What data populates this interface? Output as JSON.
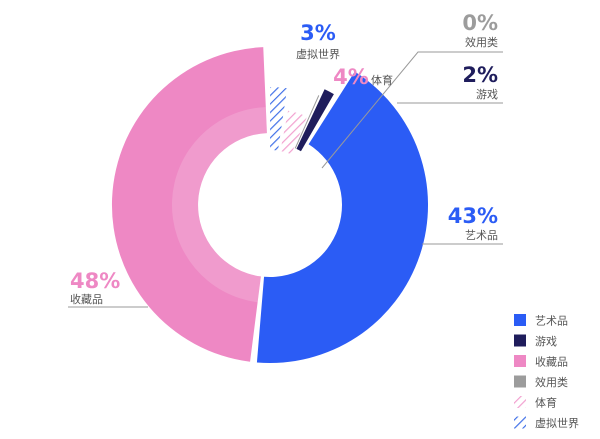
{
  "chart_data": {
    "type": "pie",
    "style": "donut",
    "categories": [
      "艺术品",
      "游戏",
      "收藏品",
      "效用类",
      "体育",
      "虚拟世界"
    ],
    "values": [
      43,
      2,
      48,
      0,
      4,
      3
    ],
    "value_labels": [
      "43%",
      "2%",
      "48%",
      "0%",
      "4%",
      "3%"
    ],
    "legend_position": "bottom-right"
  },
  "colors": {
    "art": "#2b5cf5",
    "games": "#1f1d5c",
    "collectibles": "#ee88c4",
    "utility": "#9c9c9c",
    "sports": "#f2a0cf",
    "virtual": "#3f6fe8",
    "leader": "#9a9a9a"
  },
  "legend": [
    {
      "label": "艺术品",
      "color": "#2b5cf5",
      "pattern": "solid"
    },
    {
      "label": "游戏",
      "color": "#1f1d5c",
      "pattern": "solid"
    },
    {
      "label": "收藏品",
      "color": "#ee88c4",
      "pattern": "solid"
    },
    {
      "label": "效用类",
      "color": "#9c9c9c",
      "pattern": "solid"
    },
    {
      "label": "体育",
      "color": "#f2a0cf",
      "pattern": "hatch"
    },
    {
      "label": "虚拟世界",
      "color": "#3f6fe8",
      "pattern": "hatch"
    }
  ]
}
